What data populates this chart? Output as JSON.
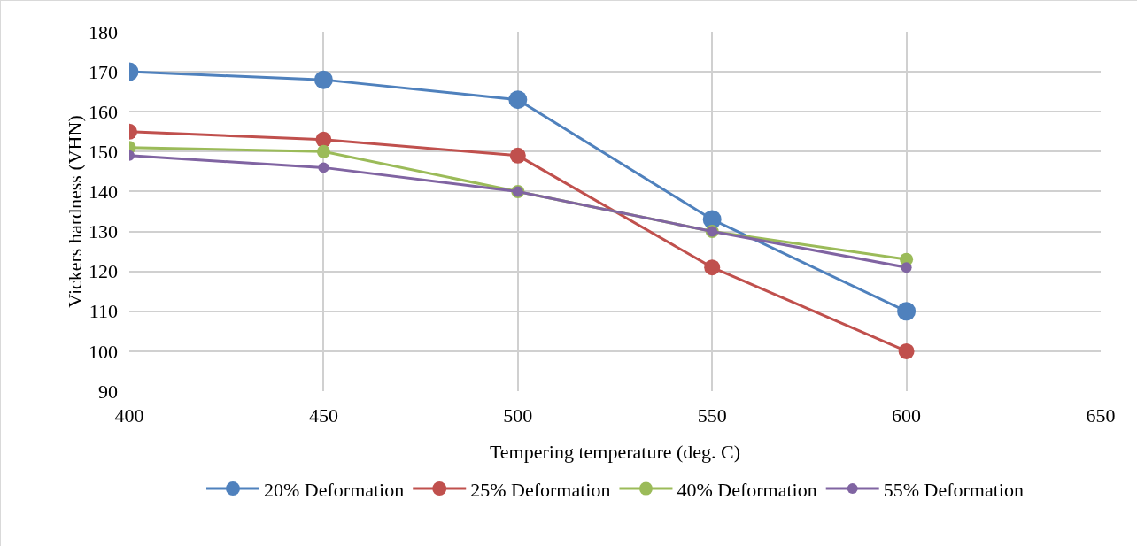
{
  "chart_data": {
    "type": "line",
    "xlabel": "Tempering temperature (deg. C)",
    "ylabel": "Vickers hardness (VHN)",
    "x": [
      400,
      450,
      500,
      550,
      600
    ],
    "series": [
      {
        "name": "20% Deformation",
        "color": "#4f81bd",
        "values": [
          170,
          168,
          163,
          133,
          110
        ]
      },
      {
        "name": "25% Deformation",
        "color": "#c0504d",
        "values": [
          155,
          153,
          149,
          121,
          100
        ]
      },
      {
        "name": "40% Deformation",
        "color": "#9bbb59",
        "values": [
          151,
          150,
          140,
          130,
          123
        ]
      },
      {
        "name": "55% Deformation",
        "color": "#8064a2",
        "values": [
          149,
          146,
          140,
          130,
          121
        ]
      }
    ],
    "xlim": [
      400,
      650
    ],
    "xticks": [
      400,
      450,
      500,
      550,
      600,
      650
    ],
    "ylim": [
      90,
      180
    ],
    "yticks": [
      90,
      100,
      110,
      120,
      130,
      140,
      150,
      160,
      170,
      180
    ],
    "grid": true,
    "legend": "bottom",
    "marker": "circle",
    "line_style": "solid"
  }
}
